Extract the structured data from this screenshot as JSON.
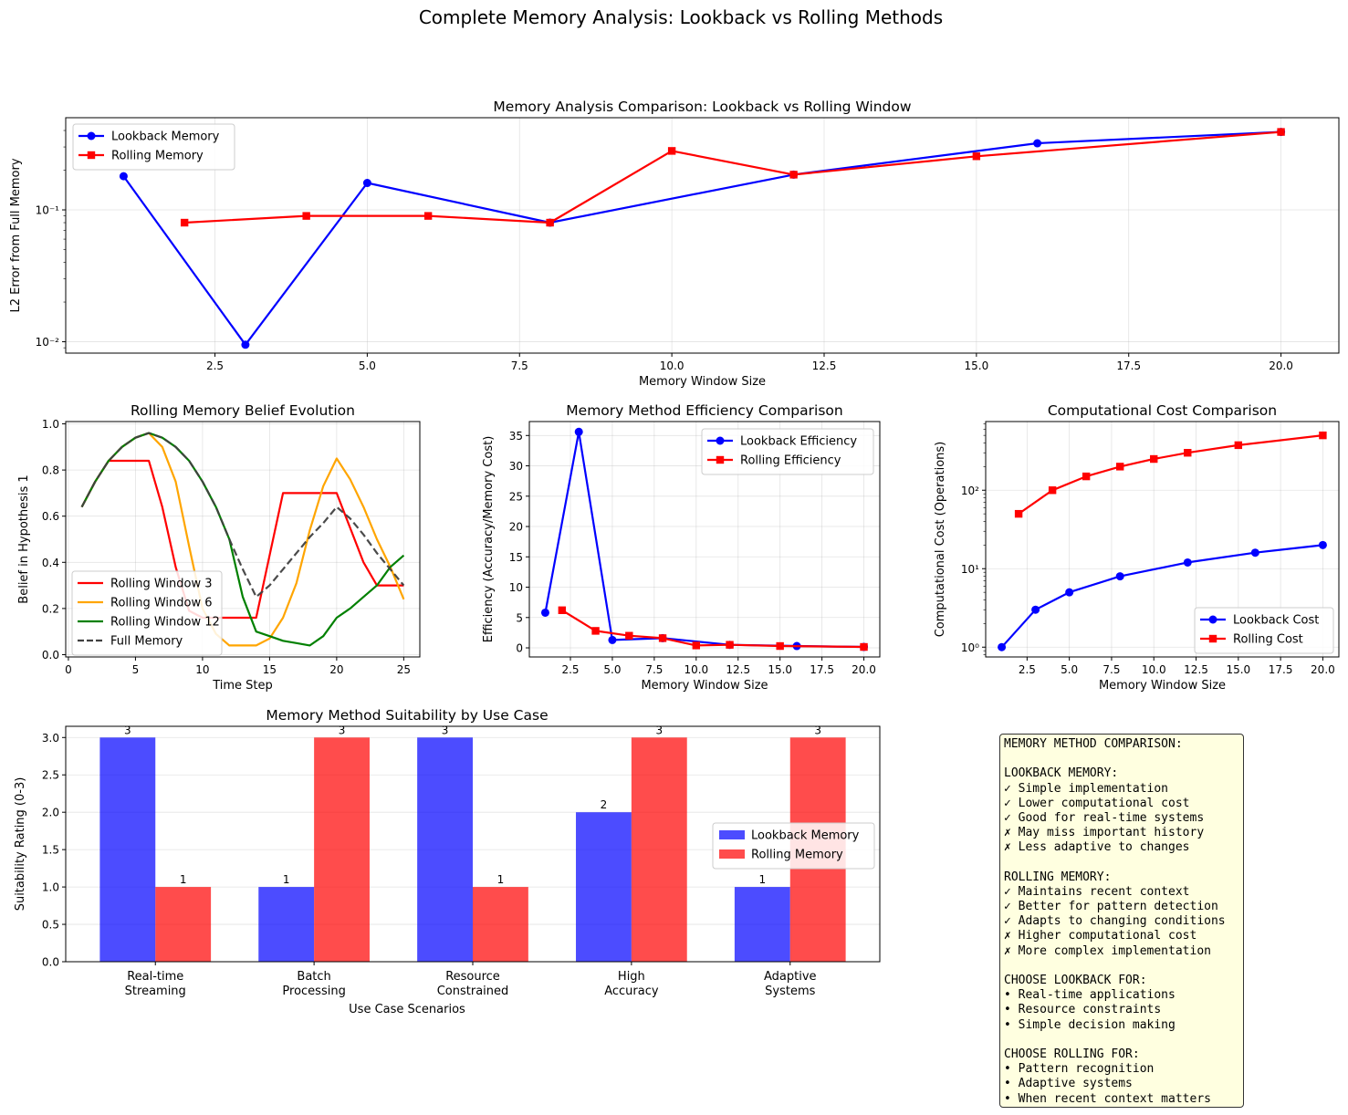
{
  "figure": {
    "suptitle": "Complete Memory Analysis: Lookback vs Rolling Methods"
  },
  "colors": {
    "lookback": "#0000ff",
    "rolling": "#ff0000",
    "win3": "#ff0000",
    "win6": "#ffa500",
    "win12": "#008000",
    "full": "#404040",
    "note_bg": "#ffffe0"
  },
  "chart_data": [
    {
      "id": "l2",
      "type": "line",
      "title": "Memory Analysis Comparison: Lookback vs Rolling Window",
      "xlabel": "Memory Window Size",
      "ylabel": "L2 Error from Full Memory",
      "yscale": "log",
      "xlim": [
        0.05,
        20.95
      ],
      "ylim": [
        0.0082,
        0.5
      ],
      "xticks": [
        2.5,
        5.0,
        7.5,
        10.0,
        12.5,
        15.0,
        17.5,
        20.0
      ],
      "xticklabels": [
        "2.5",
        "5.0",
        "7.5",
        "10.0",
        "12.5",
        "15.0",
        "17.5",
        "20.0"
      ],
      "yticks": [
        0.01,
        0.1
      ],
      "yticklabels": [
        "10⁻²",
        "10⁻¹"
      ],
      "grid": true,
      "legend": "upper left",
      "series": [
        {
          "name": "Lookback Memory",
          "color": "#0000ff",
          "marker": "circle",
          "x": [
            1,
            3,
            5,
            8,
            12,
            16,
            20
          ],
          "y": [
            0.18,
            0.0095,
            0.16,
            0.08,
            0.185,
            0.32,
            0.39
          ]
        },
        {
          "name": "Rolling Memory",
          "color": "#ff0000",
          "marker": "square",
          "x": [
            2,
            4,
            6,
            8,
            10,
            12,
            15,
            20
          ],
          "y": [
            0.08,
            0.09,
            0.09,
            0.08,
            0.28,
            0.185,
            0.255,
            0.39
          ]
        }
      ]
    },
    {
      "id": "belief",
      "type": "line",
      "title": "Rolling Memory Belief Evolution",
      "xlabel": "Time Step",
      "ylabel": "Belief in Hypothesis 1",
      "xlim": [
        -0.2,
        26.2
      ],
      "ylim": [
        -0.01,
        1.01
      ],
      "xticks": [
        0,
        5,
        10,
        15,
        20,
        25
      ],
      "xticklabels": [
        "0",
        "5",
        "10",
        "15",
        "20",
        "25"
      ],
      "yticks": [
        0.0,
        0.2,
        0.4,
        0.6,
        0.8,
        1.0
      ],
      "yticklabels": [
        "0.0",
        "0.2",
        "0.4",
        "0.6",
        "0.8",
        "1.0"
      ],
      "grid": true,
      "legend": "lower left",
      "x": [
        1,
        2,
        3,
        4,
        5,
        6,
        7,
        8,
        9,
        10,
        11,
        12,
        13,
        14,
        15,
        16,
        17,
        18,
        19,
        20,
        21,
        22,
        23,
        24,
        25
      ],
      "series": [
        {
          "name": "Rolling Window 3",
          "color": "#ff0000",
          "dash": "solid",
          "y": [
            0.64,
            0.75,
            0.84,
            0.84,
            0.84,
            0.84,
            0.64,
            0.38,
            0.19,
            0.16,
            0.16,
            0.16,
            0.16,
            0.16,
            0.43,
            0.7,
            0.7,
            0.7,
            0.7,
            0.7,
            0.55,
            0.4,
            0.3,
            0.3,
            0.3
          ]
        },
        {
          "name": "Rolling Window 6",
          "color": "#ffa500",
          "dash": "solid",
          "y": [
            0.64,
            0.75,
            0.84,
            0.9,
            0.94,
            0.96,
            0.9,
            0.75,
            0.47,
            0.2,
            0.09,
            0.04,
            0.04,
            0.04,
            0.07,
            0.16,
            0.31,
            0.54,
            0.73,
            0.85,
            0.76,
            0.64,
            0.5,
            0.38,
            0.24
          ]
        },
        {
          "name": "Rolling Window 12",
          "color": "#008000",
          "dash": "solid",
          "y": [
            0.64,
            0.75,
            0.84,
            0.9,
            0.94,
            0.96,
            0.94,
            0.9,
            0.84,
            0.75,
            0.64,
            0.5,
            0.25,
            0.1,
            0.08,
            0.06,
            0.05,
            0.04,
            0.08,
            0.16,
            0.2,
            0.25,
            0.3,
            0.38,
            0.43
          ]
        },
        {
          "name": "Full Memory",
          "color": "#404040",
          "dash": "dashed",
          "y": [
            0.64,
            0.75,
            0.84,
            0.9,
            0.94,
            0.96,
            0.94,
            0.9,
            0.84,
            0.75,
            0.64,
            0.5,
            0.37,
            0.25,
            0.3,
            0.37,
            0.44,
            0.51,
            0.57,
            0.64,
            0.59,
            0.52,
            0.44,
            0.37,
            0.3
          ]
        }
      ]
    },
    {
      "id": "eff",
      "type": "line",
      "title": "Memory Method Efficiency Comparison",
      "xlabel": "Memory Window Size",
      "ylabel": "Efficiency (Accuracy/Memory Cost)",
      "xlim": [
        0.05,
        20.95
      ],
      "ylim": [
        -1.5,
        37.3
      ],
      "xticks": [
        2.5,
        5.0,
        7.5,
        10.0,
        12.5,
        15.0,
        17.5,
        20.0
      ],
      "xticklabels": [
        "2.5",
        "5.0",
        "7.5",
        "10.0",
        "12.5",
        "15.0",
        "17.5",
        "20.0"
      ],
      "yticks": [
        0,
        5,
        10,
        15,
        20,
        25,
        30,
        35
      ],
      "yticklabels": [
        "0",
        "5",
        "10",
        "15",
        "20",
        "25",
        "30",
        "35"
      ],
      "grid": true,
      "legend": "upper right",
      "series": [
        {
          "name": "Lookback Efficiency",
          "color": "#0000ff",
          "marker": "circle",
          "x": [
            1,
            3,
            5,
            8,
            12,
            16,
            20
          ],
          "y": [
            5.8,
            35.6,
            1.3,
            1.6,
            0.5,
            0.3,
            0.15
          ]
        },
        {
          "name": "Rolling Efficiency",
          "color": "#ff0000",
          "marker": "square",
          "x": [
            2,
            4,
            6,
            8,
            10,
            12,
            15,
            20
          ],
          "y": [
            6.2,
            2.8,
            2.0,
            1.6,
            0.4,
            0.5,
            0.3,
            0.15
          ]
        }
      ]
    },
    {
      "id": "cost",
      "type": "line",
      "title": "Computational Cost Comparison",
      "xlabel": "Memory Window Size",
      "ylabel": "Computational Cost (Operations)",
      "yscale": "log",
      "xlim": [
        0.05,
        20.95
      ],
      "ylim": [
        0.75,
        750
      ],
      "xticks": [
        2.5,
        5.0,
        7.5,
        10.0,
        12.5,
        15.0,
        17.5,
        20.0
      ],
      "xticklabels": [
        "2.5",
        "5.0",
        "7.5",
        "10.0",
        "12.5",
        "15.0",
        "17.5",
        "20.0"
      ],
      "yticks": [
        1,
        10,
        100
      ],
      "yticklabels": [
        "10⁰",
        "10¹",
        "10²"
      ],
      "grid": true,
      "legend": "lower right",
      "series": [
        {
          "name": "Lookback Cost",
          "color": "#0000ff",
          "marker": "circle",
          "x": [
            1,
            3,
            5,
            8,
            12,
            16,
            20
          ],
          "y": [
            1,
            3,
            5,
            8,
            12,
            16,
            20
          ]
        },
        {
          "name": "Rolling Cost",
          "color": "#ff0000",
          "marker": "square",
          "x": [
            2,
            4,
            6,
            8,
            10,
            12,
            15,
            20
          ],
          "y": [
            50,
            100,
            150,
            200,
            250,
            300,
            375,
            500
          ]
        }
      ]
    },
    {
      "id": "suit",
      "type": "bar",
      "title": "Memory Method Suitability by Use Case",
      "xlabel": "Use Case Scenarios",
      "ylabel": "Suitability Rating (0-3)",
      "ylim": [
        0,
        3.15
      ],
      "yticks": [
        0.0,
        0.5,
        1.0,
        1.5,
        2.0,
        2.5,
        3.0
      ],
      "yticklabels": [
        "0.0",
        "0.5",
        "1.0",
        "1.5",
        "2.0",
        "2.5",
        "3.0"
      ],
      "grid": true,
      "legend": "center right",
      "categories": [
        [
          "Real-time",
          "Streaming"
        ],
        [
          "Batch",
          "Processing"
        ],
        [
          "Resource",
          "Constrained"
        ],
        [
          "High",
          "Accuracy"
        ],
        [
          "Adaptive",
          "Systems"
        ]
      ],
      "series": [
        {
          "name": "Lookback Memory",
          "color": "#0000ff",
          "values": [
            3,
            1,
            3,
            2,
            1
          ],
          "labels": [
            "3",
            "1",
            "3",
            "2",
            "1"
          ]
        },
        {
          "name": "Rolling Memory",
          "color": "#ff0000",
          "values": [
            1,
            3,
            1,
            3,
            3
          ],
          "labels": [
            "1",
            "3",
            "1",
            "3",
            "3"
          ]
        }
      ]
    }
  ],
  "note": {
    "lines": [
      "MEMORY METHOD COMPARISON:",
      "",
      "LOOKBACK MEMORY:",
      "✓ Simple implementation",
      "✓ Lower computational cost",
      "✓ Good for real-time systems",
      "✗ May miss important history",
      "✗ Less adaptive to changes",
      "",
      "ROLLING MEMORY:",
      "✓ Maintains recent context",
      "✓ Better for pattern detection",
      "✓ Adapts to changing conditions",
      "✗ Higher computational cost",
      "✗ More complex implementation",
      "",
      "CHOOSE LOOKBACK FOR:",
      "• Real-time applications",
      "• Resource constraints",
      "• Simple decision making",
      "",
      "CHOOSE ROLLING FOR:",
      "• Pattern recognition",
      "• Adaptive systems",
      "• When recent context matters"
    ]
  }
}
